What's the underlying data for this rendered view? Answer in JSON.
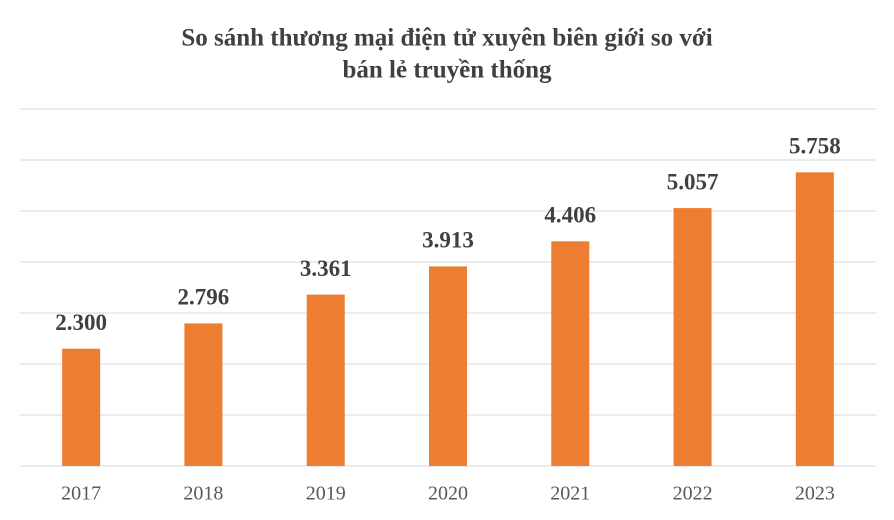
{
  "chart_data": {
    "type": "bar",
    "title": [
      "So sánh thương mại điện tử xuyên biên giới so với",
      "bán lẻ truyền thống"
    ],
    "categories": [
      "2017",
      "2018",
      "2019",
      "2020",
      "2021",
      "2022",
      "2023"
    ],
    "values": [
      2.3,
      2.796,
      3.361,
      3.913,
      4.406,
      5.057,
      5.758
    ],
    "value_labels": [
      "2.300",
      "2.796",
      "3.361",
      "3.913",
      "4.406",
      "5.057",
      "5.758"
    ],
    "color": "#ed7d31",
    "ylim": [
      0,
      7
    ],
    "yticks": [
      0,
      1,
      2,
      3,
      4,
      5,
      6,
      7
    ],
    "grid": true
  }
}
